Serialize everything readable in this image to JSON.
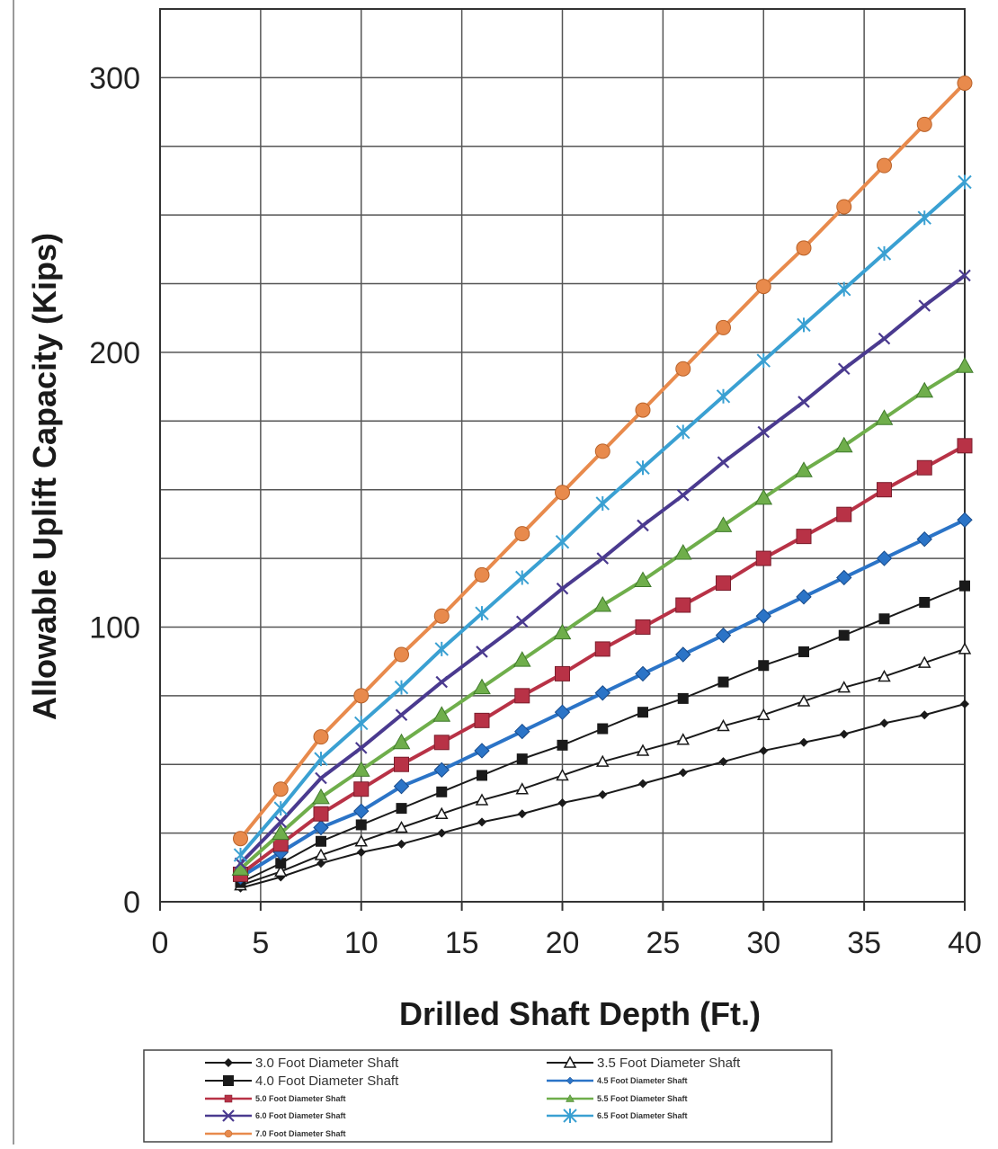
{
  "chart_data": {
    "type": "line",
    "xlabel": "Drilled Shaft Depth (Ft.)",
    "ylabel": "Allowable Uplift Capacity (Kips)",
    "xlim": [
      0,
      40
    ],
    "ylim": [
      0,
      300
    ],
    "x_ticks": [
      "0",
      "5",
      "10",
      "15",
      "20",
      "25",
      "30",
      "35",
      "40"
    ],
    "y_ticks": [
      "0",
      "100",
      "200",
      "300"
    ],
    "grid": true,
    "legend_position": "bottom",
    "x": [
      4,
      6,
      8,
      10,
      12,
      14,
      16,
      18,
      20,
      22,
      24,
      26,
      28,
      30,
      32,
      34,
      36,
      38,
      40
    ],
    "series": [
      {
        "name": "3.0 Foot Diameter Shaft",
        "color": "#1a1a1a",
        "marker": "diamond",
        "small_label": false,
        "values": [
          5,
          9,
          14,
          18,
          21,
          25,
          29,
          32,
          36,
          39,
          43,
          47,
          51,
          55,
          58,
          61,
          65,
          68,
          72
        ]
      },
      {
        "name": "3.5 Foot Diameter Shaft",
        "color": "#1a1a1a",
        "marker": "open-triangle",
        "small_label": false,
        "values": [
          6,
          11,
          17,
          22,
          27,
          32,
          37,
          41,
          46,
          51,
          55,
          59,
          64,
          68,
          73,
          78,
          82,
          87,
          92
        ]
      },
      {
        "name": "4.0 Foot Diameter Shaft",
        "color": "#1a1a1a",
        "marker": "square",
        "small_label": false,
        "values": [
          7,
          14,
          22,
          28,
          34,
          40,
          46,
          52,
          57,
          63,
          69,
          74,
          80,
          86,
          91,
          97,
          103,
          109,
          115
        ]
      },
      {
        "name": "4.5 Foot Diameter Shaft",
        "color": "#2b74c7",
        "marker": "diamond-large",
        "small_label": true,
        "values": [
          9,
          18,
          27,
          33,
          42,
          48,
          55,
          62,
          69,
          76,
          83,
          90,
          97,
          104,
          111,
          118,
          125,
          132,
          139
        ]
      },
      {
        "name": "5.0 Foot Diameter Shaft",
        "color": "#b83246",
        "marker": "square-large",
        "small_label": true,
        "values": [
          10,
          21,
          32,
          41,
          50,
          58,
          66,
          75,
          83,
          92,
          100,
          108,
          116,
          125,
          133,
          141,
          150,
          158,
          166
        ]
      },
      {
        "name": "5.5 Foot Diameter Shaft",
        "color": "#6fae4b",
        "marker": "triangle-large",
        "small_label": true,
        "values": [
          12,
          25,
          38,
          48,
          58,
          68,
          78,
          88,
          98,
          108,
          117,
          127,
          137,
          147,
          157,
          166,
          176,
          186,
          195
        ]
      },
      {
        "name": "6.0 Foot Diameter Shaft",
        "color": "#4a3a8f",
        "marker": "x",
        "small_label": true,
        "values": [
          14,
          29,
          45,
          56,
          68,
          80,
          91,
          102,
          114,
          125,
          137,
          148,
          160,
          171,
          182,
          194,
          205,
          217,
          228
        ]
      },
      {
        "name": "6.5 Foot Diameter Shaft",
        "color": "#3aa0d2",
        "marker": "star",
        "small_label": true,
        "values": [
          17,
          34,
          52,
          65,
          78,
          92,
          105,
          118,
          131,
          145,
          158,
          171,
          184,
          197,
          210,
          223,
          236,
          249,
          262
        ]
      },
      {
        "name": "7.0 Foot Diameter Shaft",
        "color": "#e88a4c",
        "marker": "circle",
        "small_label": true,
        "values": [
          23,
          41,
          60,
          75,
          90,
          104,
          119,
          134,
          149,
          164,
          179,
          194,
          209,
          224,
          238,
          253,
          268,
          283,
          298
        ]
      }
    ]
  }
}
